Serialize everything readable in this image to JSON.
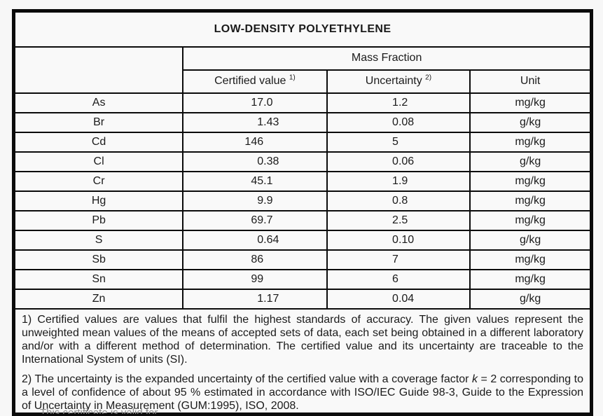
{
  "colors": {
    "page_bg": "#f7f7f7",
    "table_bg": "#f9f9f9",
    "border": "#0b0b0b",
    "text": "#1b1b1b",
    "muted_text": "#8c8c8c"
  },
  "title": "LOW-DENSITY POLYETHYLENE",
  "table": {
    "group_header": "Mass Fraction",
    "columns": {
      "certified": {
        "label": "Certified value",
        "footnote_ref": "1)"
      },
      "uncertainty": {
        "label": "Uncertainty",
        "footnote_ref": "2)"
      },
      "unit": {
        "label": "Unit"
      }
    },
    "rows": [
      {
        "element": "As",
        "certified": "17.0",
        "uncertainty": "1.2",
        "unit": "mg/kg"
      },
      {
        "element": "Br",
        "certified": "1.43",
        "uncertainty": "0.08",
        "unit": "g/kg"
      },
      {
        "element": "Cd",
        "certified": "146",
        "uncertainty": "5",
        "unit": "mg/kg"
      },
      {
        "element": "Cl",
        "certified": "0.38",
        "uncertainty": "0.06",
        "unit": "g/kg"
      },
      {
        "element": "Cr",
        "certified": "45.1",
        "uncertainty": "1.9",
        "unit": "mg/kg"
      },
      {
        "element": "Hg",
        "certified": "9.9",
        "uncertainty": "0.8",
        "unit": "mg/kg"
      },
      {
        "element": "Pb",
        "certified": "69.7",
        "uncertainty": "2.5",
        "unit": "mg/kg"
      },
      {
        "element": "S",
        "certified": "0.64",
        "uncertainty": "0.10",
        "unit": "g/kg"
      },
      {
        "element": "Sb",
        "certified": "86",
        "uncertainty": "7",
        "unit": "mg/kg"
      },
      {
        "element": "Sn",
        "certified": "99",
        "uncertainty": "6",
        "unit": "mg/kg"
      },
      {
        "element": "Zn",
        "certified": "1.17",
        "uncertainty": "0.04",
        "unit": "g/kg"
      }
    ]
  },
  "footnotes": [
    {
      "text": "1) Certified values are values that fulfil the highest standards of accuracy. The given values represent the unweighted mean values of the means of accepted sets of data, each set being obtained in a different laboratory and/or with a different method of determination. The certified value and its uncertainty are traceable to the International System of units (SI)."
    },
    {
      "prefix": "2) The uncertainty is the expanded uncertainty of the certified value with a coverage factor ",
      "italic": "k",
      "suffix": " = 2 corresponding to a level of confidence of about 95 % estimated in accordance with ISO/IEC Guide 98-3, Guide to the Expression of Uncertainty in Measurement (GUM:1995), ISO, 2008."
    }
  ],
  "clipped_bottom_text": "This certificate is valid for"
}
